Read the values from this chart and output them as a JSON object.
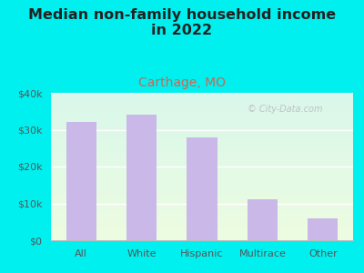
{
  "categories": [
    "All",
    "White",
    "Hispanic",
    "Multirace",
    "Other"
  ],
  "values": [
    32000,
    34000,
    28000,
    11000,
    6000
  ],
  "bar_color": "#c9b8e8",
  "title_line1": "Median non-family household income",
  "title_line2": "in 2022",
  "subtitle": "Carthage, MO",
  "subtitle_color": "#cc6655",
  "title_color": "#222222",
  "background_color": "#00f0f0",
  "ylim": [
    0,
    40000
  ],
  "yticks": [
    0,
    10000,
    20000,
    30000,
    40000
  ],
  "ytick_labels": [
    "$0",
    "$10k",
    "$20k",
    "$30k",
    "$40k"
  ],
  "watermark": "© City-Data.com",
  "title_fontsize": 11.5,
  "subtitle_fontsize": 10,
  "tick_fontsize": 8,
  "bar_width": 0.5
}
